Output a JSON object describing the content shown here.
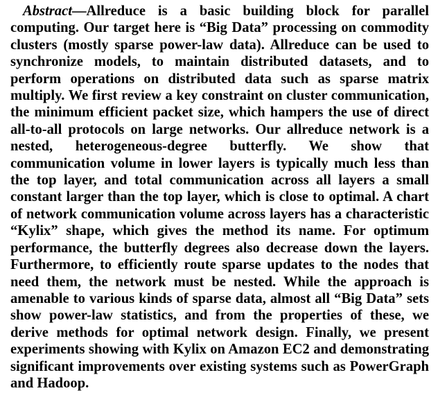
{
  "abstract": {
    "label": "Abstract",
    "dash": "—",
    "text": "Allreduce is a basic building block for parallel computing. Our target here is “Big Data” processing on commodity clusters (mostly sparse power-law data). Allreduce can be used to synchronize models, to maintain distributed datasets, and to perform operations on distributed data such as sparse matrix multiply. We first review a key constraint on cluster communication, the minimum efficient packet size, which hampers the use of direct all-to-all protocols on large networks. Our allreduce network is a nested, heterogeneous-degree butterfly. We show that communication volume in lower layers is typically much less than the top layer, and total communication across all layers a small constant larger than the top layer, which is close to optimal. A chart of network communication volume across layers has a characteristic “Kylix” shape, which gives the method its name. For optimum performance, the butterfly degrees also decrease down the layers. Furthermore, to efficiently route sparse updates to the nodes that need them, the network must be nested. While the approach is amenable to various kinds of sparse data, almost all “Big Data” sets show power-law statistics, and from the properties of these, we derive methods for optimal network design. Finally, we present experiments showing with Kylix on Amazon EC2 and demonstrating significant improvements over existing systems such as PowerGraph and Hadoop."
  }
}
